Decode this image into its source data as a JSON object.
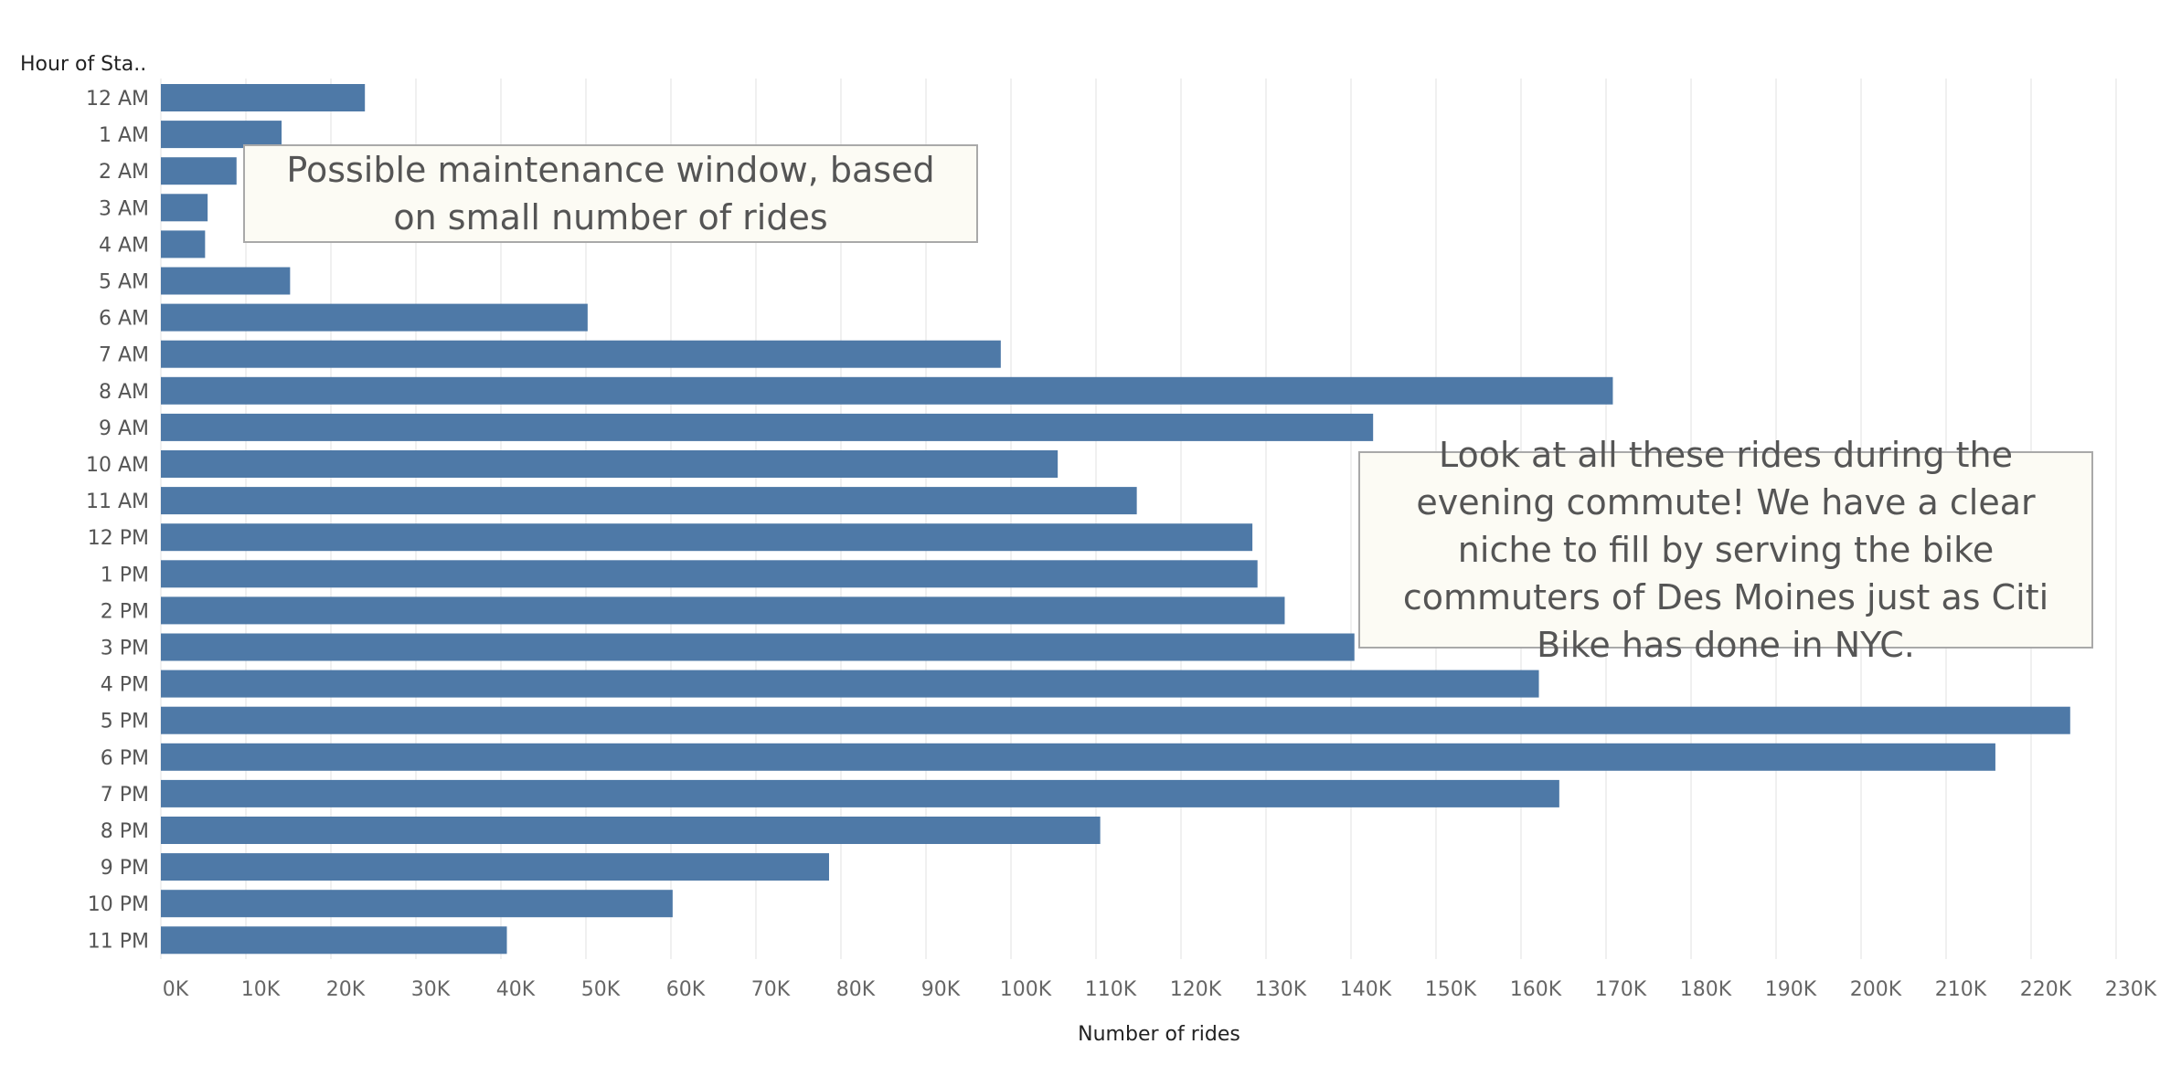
{
  "chart_data": {
    "type": "bar",
    "orientation": "horizontal",
    "y_axis_title": "Hour of Sta..",
    "xlabel": "Number of rides",
    "categories": [
      "12 AM",
      "1 AM",
      "2 AM",
      "3 AM",
      "4 AM",
      "5 AM",
      "6 AM",
      "7 AM",
      "8 AM",
      "9 AM",
      "10 AM",
      "11 AM",
      "12 PM",
      "1 PM",
      "2 PM",
      "3 PM",
      "4 PM",
      "5 PM",
      "6 PM",
      "7 PM",
      "8 PM",
      "9 PM",
      "10 PM",
      "11 PM"
    ],
    "values": [
      24000,
      14200,
      8900,
      5500,
      5200,
      15200,
      50200,
      98800,
      170800,
      142600,
      105500,
      114800,
      128400,
      129000,
      132200,
      140400,
      162100,
      224600,
      215800,
      164500,
      110500,
      78600,
      60200,
      40700
    ],
    "xlim": [
      0,
      235000
    ],
    "xticks": [
      0,
      10000,
      20000,
      30000,
      40000,
      50000,
      60000,
      70000,
      80000,
      90000,
      100000,
      110000,
      120000,
      130000,
      140000,
      150000,
      160000,
      170000,
      180000,
      190000,
      200000,
      210000,
      220000,
      230000
    ],
    "xtick_labels": [
      "0K",
      "10K",
      "20K",
      "30K",
      "40K",
      "50K",
      "60K",
      "70K",
      "80K",
      "90K",
      "100K",
      "110K",
      "120K",
      "130K",
      "140K",
      "150K",
      "160K",
      "170K",
      "180K",
      "190K",
      "200K",
      "210K",
      "220K",
      "230K"
    ],
    "grid": true,
    "bar_color": "#4e79a7"
  },
  "annotations": {
    "maintenance": "Possible maintenance window, based on small number of rides",
    "evening": "Look at all these rides during the evening commute! We have a clear niche to fill by serving the bike commuters of Des Moines just as Citi Bike has done in NYC."
  }
}
